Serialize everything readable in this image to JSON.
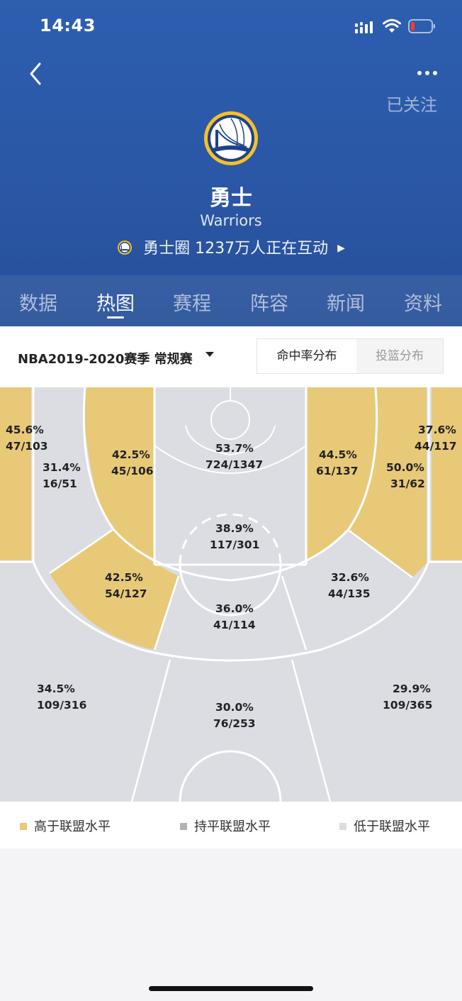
{
  "status": {
    "time": "14:43"
  },
  "header": {
    "follow_label": "已关注",
    "team_cn": "勇士",
    "team_en": "Warriors",
    "circle": {
      "name": "勇士圈",
      "text": "1237万人正在互动"
    },
    "tabs": [
      {
        "label": "数据"
      },
      {
        "label": "热图"
      },
      {
        "label": "赛程"
      },
      {
        "label": "阵容"
      },
      {
        "label": "新闻"
      },
      {
        "label": "资料"
      }
    ],
    "active_tab": "热图"
  },
  "filter": {
    "season": "NBA2019-2020赛季 常规赛",
    "seg_on": "命中率分布",
    "seg_off": "投篮分布"
  },
  "colors": {
    "above": "#e8c978",
    "equal": "#b2b2b8",
    "below": "#dcdde3",
    "header": "#2d5eaf"
  },
  "zones": [
    {
      "id": "left-corner-3",
      "pct": "45.6%",
      "made_att": "47/103",
      "level": "above"
    },
    {
      "id": "left-baseline-mid",
      "pct": "31.4%",
      "made_att": "16/51",
      "level": "below"
    },
    {
      "id": "left-short-mid",
      "pct": "42.5%",
      "made_att": "45/106",
      "level": "above"
    },
    {
      "id": "paint-upper",
      "pct": "53.7%",
      "made_att": "724/1347",
      "level": "below"
    },
    {
      "id": "right-short-mid",
      "pct": "44.5%",
      "made_att": "61/137",
      "level": "above"
    },
    {
      "id": "right-baseline-mid",
      "pct": "50.0%",
      "made_att": "31/62",
      "level": "above"
    },
    {
      "id": "right-corner-3",
      "pct": "37.6%",
      "made_att": "44/117",
      "level": "above"
    },
    {
      "id": "paint-lower",
      "pct": "38.9%",
      "made_att": "117/301",
      "level": "below"
    },
    {
      "id": "left-elbow-mid",
      "pct": "42.5%",
      "made_att": "54/127",
      "level": "above"
    },
    {
      "id": "top-key-mid",
      "pct": "36.0%",
      "made_att": "41/114",
      "level": "below"
    },
    {
      "id": "right-elbow-mid",
      "pct": "32.6%",
      "made_att": "44/135",
      "level": "below"
    },
    {
      "id": "left-wing-3",
      "pct": "34.5%",
      "made_att": "109/316",
      "level": "below"
    },
    {
      "id": "top-3",
      "pct": "30.0%",
      "made_att": "76/253",
      "level": "below"
    },
    {
      "id": "right-wing-3",
      "pct": "29.9%",
      "made_att": "109/365",
      "level": "below"
    }
  ],
  "legend": {
    "above": "高于联盟水平",
    "equal": "持平联盟水平",
    "below": "低于联盟水平"
  }
}
